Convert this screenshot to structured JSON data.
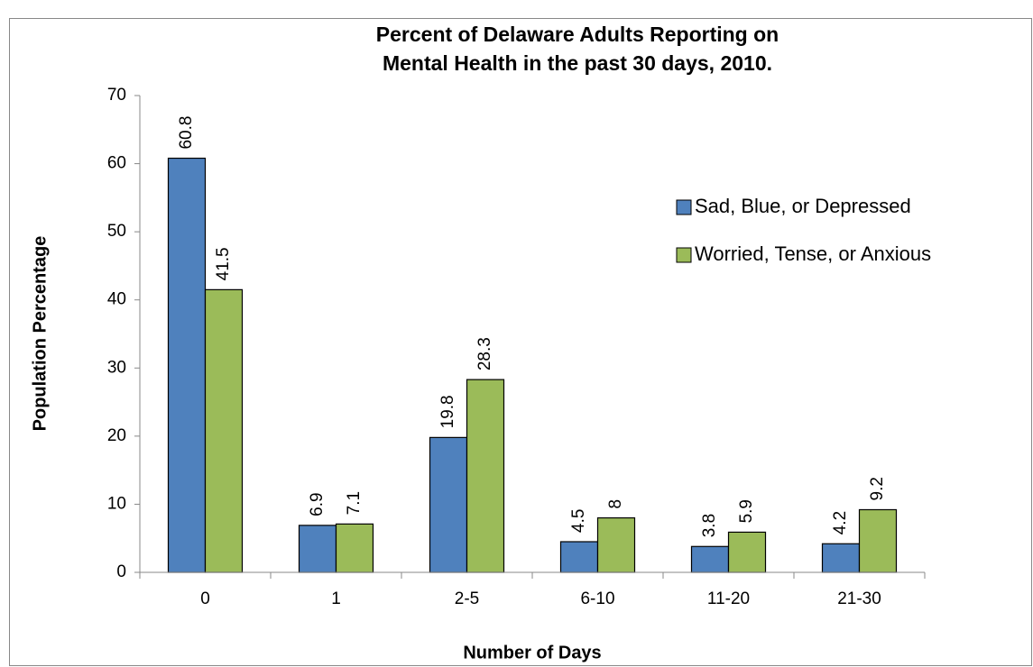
{
  "chart_data": {
    "type": "bar",
    "title": [
      "Percent of Delaware Adults Reporting on",
      "Mental Health in the past 30 days, 2010."
    ],
    "x_label": "Number of Days",
    "y_label": "Population Percentage",
    "categories": [
      "0",
      "1",
      "2-5",
      "6-10",
      "11-20",
      "21-30"
    ],
    "series": [
      {
        "name": "Sad, Blue, or Depressed",
        "color": "#4f81bd",
        "values": [
          60.8,
          6.9,
          19.8,
          4.5,
          3.8,
          4.2
        ]
      },
      {
        "name": "Worried, Tense, or Anxious",
        "color": "#9bbb59",
        "values": [
          41.5,
          7.1,
          28.3,
          8,
          5.9,
          9.2
        ]
      }
    ],
    "ylim": [
      0,
      70
    ],
    "yticks": [
      0,
      10,
      20,
      30,
      40,
      50,
      60,
      70
    ],
    "grid": false,
    "legend": "right"
  }
}
